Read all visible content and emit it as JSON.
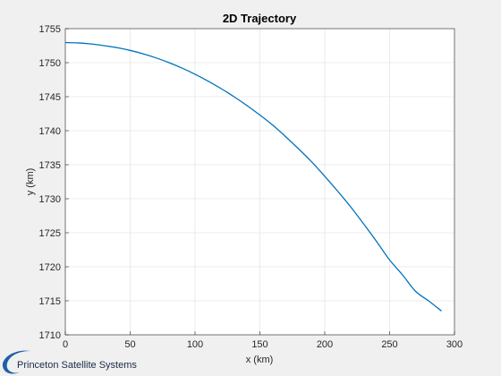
{
  "chart_data": {
    "type": "line",
    "title": "2D Trajectory",
    "xlabel": "x (km)",
    "ylabel": "y (km)",
    "xlim": [
      0,
      300
    ],
    "ylim": [
      1710,
      1755
    ],
    "xticks": [
      "0",
      "50",
      "100",
      "150",
      "200",
      "250",
      "300"
    ],
    "yticks": [
      "1710",
      "1715",
      "1720",
      "1725",
      "1730",
      "1735",
      "1740",
      "1745",
      "1750",
      "1755"
    ],
    "grid": true,
    "series": [
      {
        "color": "#0072bd",
        "x": [
          0,
          10,
          20,
          30,
          40,
          50,
          60,
          70,
          80,
          90,
          100,
          110,
          120,
          130,
          140,
          150,
          160,
          170,
          180,
          190,
          200,
          210,
          220,
          230,
          240,
          250,
          260,
          270,
          280,
          290
        ],
        "y": [
          1752.95,
          1752.9,
          1752.75,
          1752.5,
          1752.2,
          1751.8,
          1751.3,
          1750.7,
          1750.0,
          1749.2,
          1748.3,
          1747.3,
          1746.2,
          1745.0,
          1743.7,
          1742.3,
          1740.8,
          1739.1,
          1737.3,
          1735.4,
          1733.3,
          1731.1,
          1728.8,
          1726.3,
          1723.7,
          1721.0,
          1718.8,
          1716.4,
          1715.0,
          1713.5
        ]
      }
    ]
  },
  "logo": {
    "text": "Princeton Satellite Systems",
    "color": "#1f5fa8"
  }
}
